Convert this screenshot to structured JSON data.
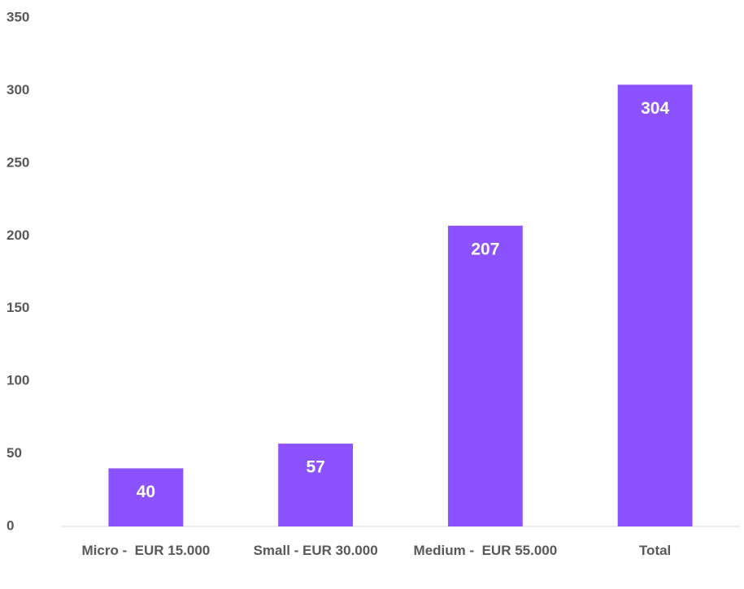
{
  "chart_data": {
    "type": "bar",
    "categories": [
      "Micro -  EUR 15.000",
      "Small - EUR 30.000",
      "Medium -  EUR 55.000",
      "Total"
    ],
    "values": [
      40,
      57,
      207,
      304
    ],
    "color": "#8c52ff",
    "ylim": [
      0,
      350
    ],
    "yticks": [
      0,
      50,
      100,
      150,
      200,
      250,
      300,
      350
    ],
    "grid": false,
    "data_labels": true
  }
}
